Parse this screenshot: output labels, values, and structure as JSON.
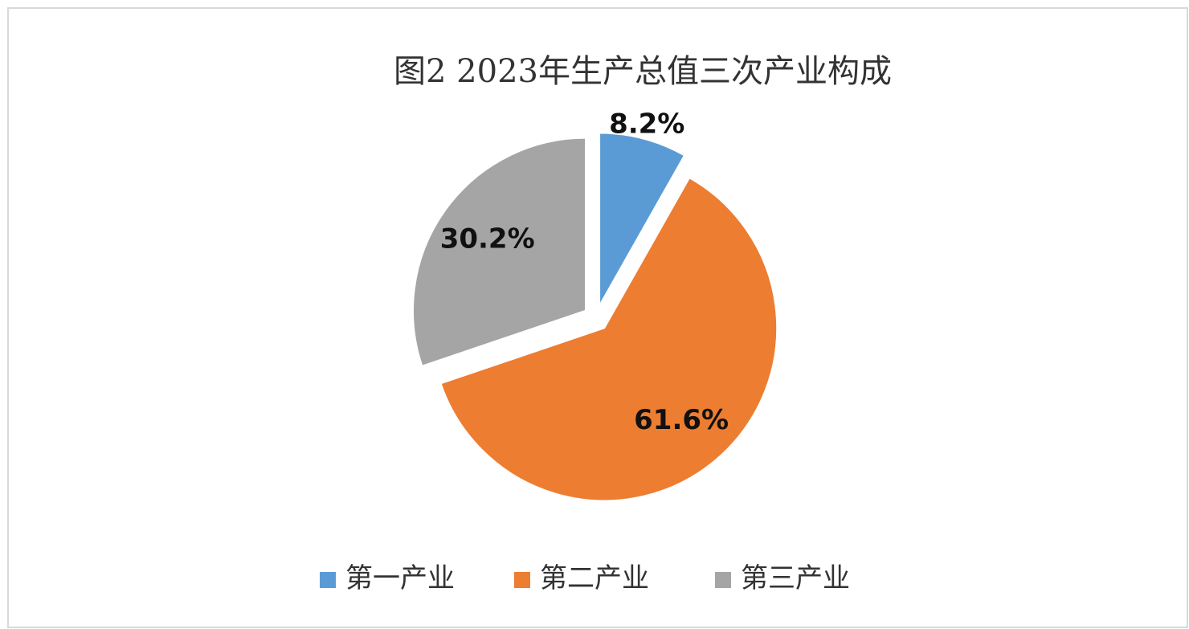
{
  "chart_data": {
    "type": "pie",
    "title": "图2 2023年生产总值三次产业构成",
    "categories": [
      "第一产业",
      "第二产业",
      "第三产业"
    ],
    "values": [
      8.2,
      61.6,
      30.2
    ],
    "value_labels": [
      "8.2%",
      "61.6%",
      "30.2%"
    ],
    "colors": [
      "#5b9bd5",
      "#ed7d31",
      "#a5a5a5"
    ],
    "legend": "bottom"
  }
}
